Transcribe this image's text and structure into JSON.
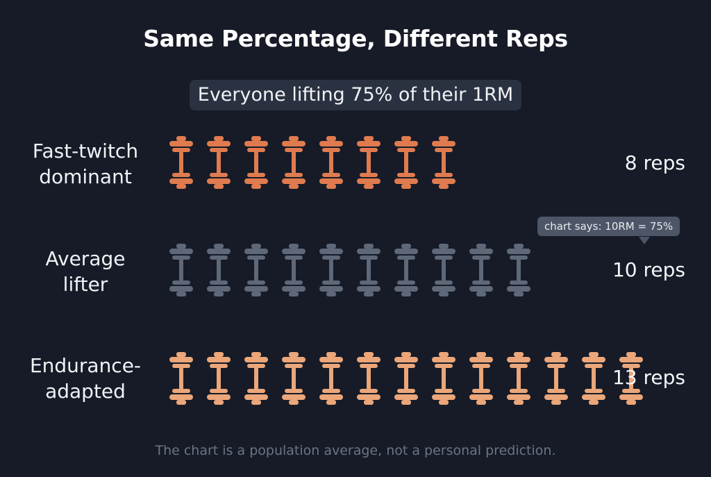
{
  "chart_data": {
    "type": "bar",
    "title": "Same Percentage, Different Reps",
    "subtitle": "Everyone lifting 75% of their 1RM",
    "categories": [
      "Fast-twitch dominant",
      "Average lifter",
      "Endurance-adapted"
    ],
    "category_lines": [
      [
        "Fast-twitch",
        "dominant"
      ],
      [
        "Average",
        "lifter"
      ],
      [
        "Endurance-",
        "adapted"
      ]
    ],
    "values": [
      8,
      10,
      13
    ],
    "value_labels": [
      "8 reps",
      "10 reps",
      "13 reps"
    ],
    "mark": "dumbbell-icon",
    "colors": [
      "#e07b4f",
      "#5e6878",
      "#eba679"
    ],
    "annotation": "chart says: 10RM = 75%",
    "annotation_row": 1,
    "footnote": "The chart is a population average, not a personal prediction."
  }
}
